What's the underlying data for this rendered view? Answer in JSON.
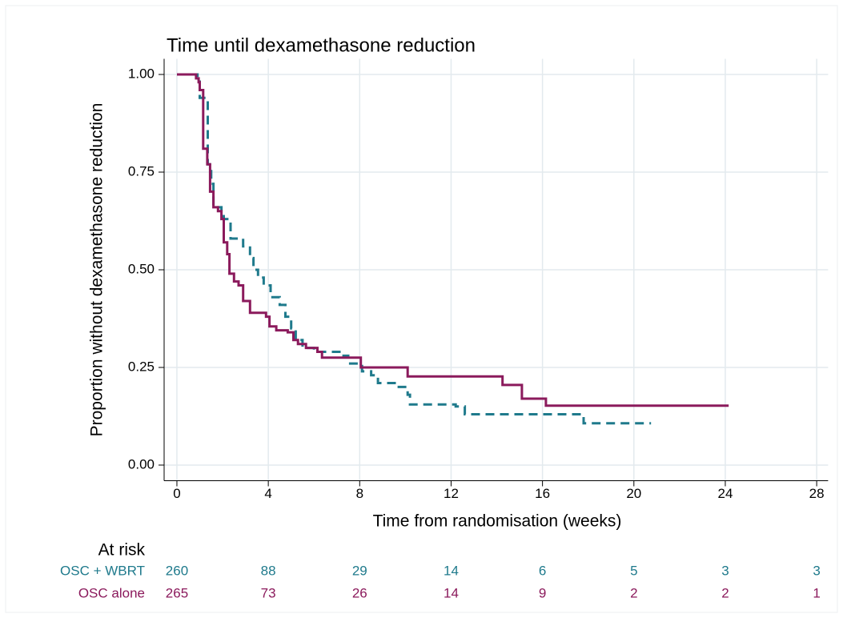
{
  "chart_data": {
    "type": "step",
    "title": "Time until dexamethasone reduction",
    "xlabel": "Time from randomisation (weeks)",
    "ylabel": "Proportion without dexamethasone reduction",
    "xlim": [
      -0.5,
      28.5
    ],
    "ylim": [
      -0.04,
      1.04
    ],
    "xticks": [
      0,
      4,
      8,
      12,
      16,
      20,
      24,
      28
    ],
    "yticks": [
      {
        "value": 0,
        "label": "0.00"
      },
      {
        "value": 0.25,
        "label": "0.25"
      },
      {
        "value": 0.5,
        "label": "0.50"
      },
      {
        "value": 0.75,
        "label": "0.75"
      },
      {
        "value": 1,
        "label": "1.00"
      }
    ],
    "grid": true,
    "series": [
      {
        "name": "OSC + WBRT",
        "color": "#1f7a8c",
        "dashed": true,
        "x": [
          0,
          0.9,
          1.0,
          1.35,
          1.5,
          1.6,
          1.95,
          2.05,
          2.35,
          2.9,
          3.2,
          3.35,
          3.55,
          3.8,
          4.1,
          4.5,
          4.75,
          5.0,
          5.2,
          5.5,
          6.0,
          7.2,
          7.5,
          8.1,
          8.5,
          8.8,
          9.6,
          10.1,
          10.2,
          12.2,
          12.6,
          17.8,
          20.75
        ],
        "values": [
          1.0,
          0.99,
          0.94,
          0.77,
          0.72,
          0.66,
          0.65,
          0.63,
          0.58,
          0.56,
          0.53,
          0.5,
          0.48,
          0.46,
          0.43,
          0.41,
          0.38,
          0.35,
          0.32,
          0.3,
          0.29,
          0.28,
          0.26,
          0.24,
          0.23,
          0.21,
          0.2,
          0.18,
          0.155,
          0.15,
          0.13,
          0.107,
          0.107
        ]
      },
      {
        "name": "OSC alone",
        "color": "#8b1a5c",
        "dashed": false,
        "x": [
          0,
          0.84,
          0.95,
          1.0,
          1.15,
          1.33,
          1.45,
          1.6,
          1.8,
          1.95,
          2.05,
          2.2,
          2.3,
          2.5,
          2.7,
          2.9,
          3.2,
          3.9,
          4.05,
          4.35,
          4.85,
          5.1,
          5.3,
          5.65,
          6.15,
          6.35,
          8.05,
          10.1,
          14.25,
          15.1,
          16.15,
          24.15
        ],
        "values": [
          1.0,
          0.99,
          0.98,
          0.96,
          0.81,
          0.77,
          0.7,
          0.66,
          0.65,
          0.63,
          0.57,
          0.54,
          0.49,
          0.47,
          0.46,
          0.42,
          0.39,
          0.38,
          0.355,
          0.345,
          0.34,
          0.32,
          0.31,
          0.3,
          0.29,
          0.275,
          0.25,
          0.227,
          0.205,
          0.17,
          0.152,
          0.152
        ]
      }
    ],
    "at_risk": {
      "title": "At risk",
      "rows": [
        [
          260,
          88,
          29,
          14,
          6,
          5,
          3,
          3
        ],
        [
          265,
          73,
          26,
          14,
          9,
          2,
          2,
          1
        ]
      ]
    }
  }
}
